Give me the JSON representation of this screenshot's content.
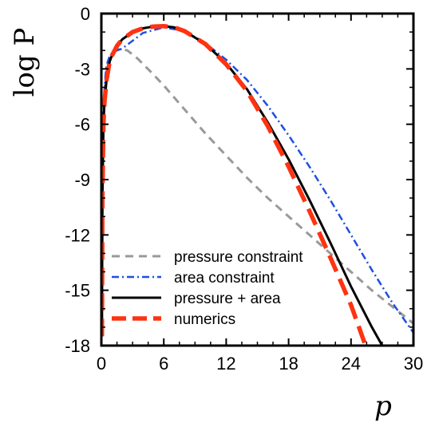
{
  "chart_data": {
    "type": "line",
    "xlabel": "p",
    "ylabel": "log P",
    "xlim": [
      0,
      30
    ],
    "ylim": [
      -18,
      0
    ],
    "x_ticks": [
      0,
      6,
      12,
      18,
      24,
      30
    ],
    "y_ticks": [
      0,
      -3,
      -6,
      -9,
      -12,
      -15,
      -18
    ],
    "grid": false,
    "legend_position": "bottom-left",
    "series": [
      {
        "name": "pressure constraint",
        "color": "#999999",
        "style": "dashed",
        "points": [
          [
            0.05,
            -17.5
          ],
          [
            0.1,
            -10
          ],
          [
            0.2,
            -5.5
          ],
          [
            0.35,
            -3.8
          ],
          [
            0.5,
            -3.1
          ],
          [
            0.8,
            -2.4
          ],
          [
            1.2,
            -2.05
          ],
          [
            1.8,
            -1.9
          ],
          [
            2.5,
            -2.0
          ],
          [
            3.5,
            -2.45
          ],
          [
            5,
            -3.3
          ],
          [
            6,
            -3.9
          ],
          [
            8,
            -5.2
          ],
          [
            10,
            -6.5
          ],
          [
            12,
            -7.7
          ],
          [
            14,
            -8.9
          ],
          [
            16,
            -10.0
          ],
          [
            18,
            -11.0
          ],
          [
            20,
            -12.0
          ],
          [
            22,
            -13.0
          ],
          [
            24,
            -14.0
          ],
          [
            26,
            -15.0
          ],
          [
            28,
            -15.9
          ],
          [
            30,
            -16.8
          ]
        ]
      },
      {
        "name": "area constraint",
        "color": "#1f4fe0",
        "style": "dash-dot",
        "points": [
          [
            0.05,
            -17.5
          ],
          [
            0.1,
            -10
          ],
          [
            0.2,
            -5.5
          ],
          [
            0.35,
            -3.6
          ],
          [
            0.5,
            -2.8
          ],
          [
            0.8,
            -2.3
          ],
          [
            1.0,
            -2.15
          ],
          [
            1.5,
            -2.0
          ],
          [
            2,
            -1.9
          ],
          [
            4,
            -1.05
          ],
          [
            6,
            -0.75
          ],
          [
            8,
            -0.95
          ],
          [
            10,
            -1.6
          ],
          [
            12,
            -2.5
          ],
          [
            14,
            -3.6
          ],
          [
            16,
            -5.0
          ],
          [
            18,
            -6.6
          ],
          [
            20,
            -8.3
          ],
          [
            22,
            -10.1
          ],
          [
            24,
            -12.0
          ],
          [
            26,
            -13.9
          ],
          [
            28,
            -15.7
          ],
          [
            30,
            -17.3
          ]
        ]
      },
      {
        "name": "pressure + area",
        "color": "#000000",
        "style": "solid",
        "points": [
          [
            0.05,
            -17.5
          ],
          [
            0.1,
            -10
          ],
          [
            0.2,
            -6
          ],
          [
            0.3,
            -4.8
          ],
          [
            0.5,
            -3.6
          ],
          [
            0.8,
            -2.6
          ],
          [
            1,
            -2.3
          ],
          [
            1.5,
            -1.75
          ],
          [
            2,
            -1.4
          ],
          [
            3,
            -1.0
          ],
          [
            4,
            -0.8
          ],
          [
            5,
            -0.7
          ],
          [
            6,
            -0.68
          ],
          [
            7,
            -0.75
          ],
          [
            8,
            -0.95
          ],
          [
            10,
            -1.65
          ],
          [
            12,
            -2.7
          ],
          [
            14,
            -4.1
          ],
          [
            16,
            -5.9
          ],
          [
            18,
            -7.9
          ],
          [
            20,
            -10.1
          ],
          [
            22,
            -12.4
          ],
          [
            24,
            -14.8
          ],
          [
            26,
            -17.0
          ],
          [
            27,
            -18.0
          ]
        ]
      },
      {
        "name": "numerics",
        "color": "#ff3311",
        "style": "dashed",
        "points": [
          [
            0.05,
            -17.5
          ],
          [
            0.1,
            -10
          ],
          [
            0.2,
            -6
          ],
          [
            0.3,
            -4.8
          ],
          [
            0.5,
            -3.6
          ],
          [
            0.8,
            -2.6
          ],
          [
            1,
            -2.3
          ],
          [
            1.5,
            -1.75
          ],
          [
            2,
            -1.4
          ],
          [
            3,
            -1.0
          ],
          [
            4,
            -0.8
          ],
          [
            5,
            -0.7
          ],
          [
            6,
            -0.68
          ],
          [
            7,
            -0.75
          ],
          [
            8,
            -0.95
          ],
          [
            10,
            -1.65
          ],
          [
            12,
            -2.75
          ],
          [
            14,
            -4.2
          ],
          [
            16,
            -6.1
          ],
          [
            18,
            -8.3
          ],
          [
            20,
            -10.7
          ],
          [
            22,
            -13.2
          ],
          [
            24,
            -15.8
          ],
          [
            25.4,
            -18.0
          ]
        ]
      }
    ]
  }
}
